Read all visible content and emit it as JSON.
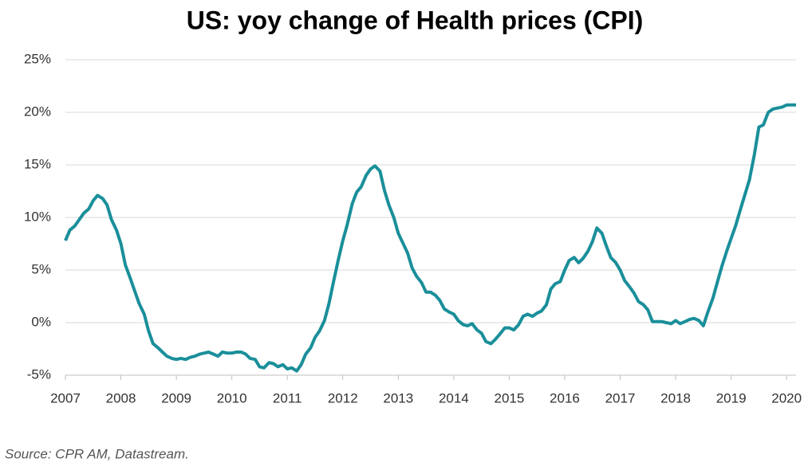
{
  "chart_data": {
    "type": "line",
    "title": "US: yoy change of Health prices (CPI)",
    "source": "Source: CPR AM, Datastream.",
    "x": [
      2007,
      2007.08,
      2007.17,
      2007.25,
      2007.33,
      2007.42,
      2007.5,
      2007.58,
      2007.67,
      2007.75,
      2007.83,
      2007.92,
      2008,
      2008.08,
      2008.17,
      2008.25,
      2008.33,
      2008.42,
      2008.5,
      2008.58,
      2008.67,
      2008.75,
      2008.83,
      2008.92,
      2009,
      2009.08,
      2009.17,
      2009.25,
      2009.33,
      2009.42,
      2009.5,
      2009.58,
      2009.67,
      2009.75,
      2009.83,
      2009.92,
      2010,
      2010.08,
      2010.17,
      2010.25,
      2010.33,
      2010.42,
      2010.5,
      2010.58,
      2010.67,
      2010.75,
      2010.83,
      2010.92,
      2011,
      2011.08,
      2011.17,
      2011.25,
      2011.33,
      2011.42,
      2011.5,
      2011.58,
      2011.67,
      2011.75,
      2011.83,
      2011.92,
      2012,
      2012.08,
      2012.17,
      2012.25,
      2012.33,
      2012.42,
      2012.5,
      2012.58,
      2012.67,
      2012.75,
      2012.83,
      2012.92,
      2013,
      2013.08,
      2013.17,
      2013.25,
      2013.33,
      2013.42,
      2013.5,
      2013.58,
      2013.67,
      2013.75,
      2013.83,
      2013.92,
      2014,
      2014.08,
      2014.17,
      2014.25,
      2014.33,
      2014.42,
      2014.5,
      2014.58,
      2014.67,
      2014.75,
      2014.83,
      2014.92,
      2015,
      2015.08,
      2015.17,
      2015.25,
      2015.33,
      2015.42,
      2015.5,
      2015.58,
      2015.67,
      2015.75,
      2015.83,
      2015.92,
      2016,
      2016.08,
      2016.17,
      2016.25,
      2016.33,
      2016.42,
      2016.5,
      2016.58,
      2016.67,
      2016.75,
      2016.83,
      2016.92,
      2017,
      2017.08,
      2017.17,
      2017.25,
      2017.33,
      2017.42,
      2017.5,
      2017.58,
      2017.67,
      2017.75,
      2017.83,
      2017.92,
      2018,
      2018.08,
      2018.17,
      2018.25,
      2018.33,
      2018.42,
      2018.5,
      2018.58,
      2018.67,
      2018.75,
      2018.83,
      2018.92,
      2019,
      2019.08,
      2019.17,
      2019.25,
      2019.33,
      2019.42,
      2019.5,
      2019.58,
      2019.67,
      2019.75,
      2019.83,
      2019.92,
      2020,
      2020.08,
      2020.17
    ],
    "series": [
      {
        "name": "Health CPI yoy",
        "color": "#1a8f9a",
        "values": [
          7.8,
          8.8,
          9.2,
          9.8,
          10.4,
          10.8,
          11.6,
          12.1,
          11.8,
          11.2,
          9.8,
          8.8,
          7.5,
          5.5,
          4.2,
          3.0,
          1.8,
          0.8,
          -0.8,
          -2.0,
          -2.4,
          -2.8,
          -3.2,
          -3.4,
          -3.5,
          -3.4,
          -3.5,
          -3.3,
          -3.2,
          -3.0,
          -2.9,
          -2.8,
          -3.0,
          -3.2,
          -2.8,
          -2.9,
          -2.9,
          -2.8,
          -2.8,
          -3.0,
          -3.4,
          -3.5,
          -4.2,
          -4.3,
          -3.8,
          -3.9,
          -4.2,
          -4.0,
          -4.4,
          -4.3,
          -4.6,
          -4.0,
          -3.0,
          -2.4,
          -1.4,
          -0.8,
          0.2,
          1.8,
          3.8,
          6.0,
          7.8,
          9.3,
          11.3,
          12.4,
          12.9,
          14.0,
          14.6,
          14.9,
          14.4,
          12.6,
          11.2,
          10.0,
          8.5,
          7.6,
          6.6,
          5.2,
          4.4,
          3.8,
          2.9,
          2.9,
          2.6,
          2.1,
          1.3,
          1.0,
          0.8,
          0.2,
          -0.2,
          -0.3,
          -0.1,
          -0.7,
          -1.0,
          -1.8,
          -2.0,
          -1.6,
          -1.1,
          -0.5,
          -0.5,
          -0.7,
          -0.2,
          0.6,
          0.8,
          0.6,
          0.9,
          1.1,
          1.7,
          3.2,
          3.7,
          3.9,
          5.0,
          5.9,
          6.2,
          5.7,
          6.1,
          6.8,
          7.7,
          9.0,
          8.5,
          7.3,
          6.2,
          5.7,
          5.0,
          4.0,
          3.4,
          2.8,
          2.0,
          1.7,
          1.2,
          0.1,
          0.1,
          0.1,
          0.0,
          -0.1,
          0.2,
          -0.1,
          0.1,
          0.3,
          0.4,
          0.2,
          -0.3,
          1.0,
          2.3,
          3.8,
          5.3,
          6.8,
          8.0,
          9.2,
          10.8,
          12.2,
          13.6,
          16.0,
          18.6,
          18.8,
          20.0,
          20.3,
          20.4,
          20.5,
          20.7,
          20.7,
          20.7
        ]
      }
    ],
    "xlim": [
      2007,
      2020.17
    ],
    "xticks": [
      2007,
      2008,
      2009,
      2010,
      2011,
      2012,
      2013,
      2014,
      2015,
      2016,
      2017,
      2018,
      2019,
      2020
    ],
    "ylim": [
      -5,
      25
    ],
    "yticks": [
      {
        "value": -5,
        "label": "-5%"
      },
      {
        "value": 0,
        "label": "0%"
      },
      {
        "value": 5,
        "label": "5%"
      },
      {
        "value": 10,
        "label": "10%"
      },
      {
        "value": 15,
        "label": "15%"
      },
      {
        "value": 20,
        "label": "20%"
      },
      {
        "value": 25,
        "label": "25%"
      }
    ],
    "grid": true
  }
}
